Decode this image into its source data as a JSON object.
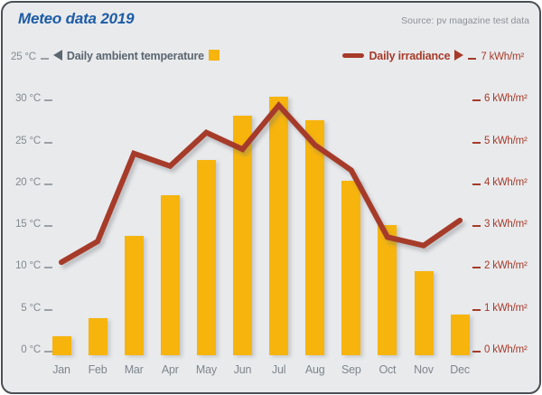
{
  "chart_data": {
    "type": "bar",
    "title": "Meteo data 2019",
    "source": "Source: pv magazine test data",
    "categories": [
      "Jan",
      "Feb",
      "Mar",
      "Apr",
      "May",
      "Jun",
      "Jul",
      "Aug",
      "Sep",
      "Oct",
      "Nov",
      "Dec"
    ],
    "series": [
      {
        "name": "Daily ambient temperature",
        "kind": "bar",
        "axis": "left",
        "unit": "°C",
        "values": [
          2.2,
          4.3,
          14.2,
          19.0,
          23.2,
          28.5,
          30.8,
          28.0,
          20.7,
          15.4,
          9.9,
          4.8
        ]
      },
      {
        "name": "Daily irradiance",
        "kind": "line",
        "axis": "right",
        "unit": "kWh/m²",
        "values": [
          2.2,
          2.7,
          4.8,
          4.5,
          5.3,
          4.9,
          5.95,
          5.0,
          4.4,
          2.8,
          2.6,
          3.2
        ]
      }
    ],
    "legend": {
      "left": {
        "tick_label": "25 °C",
        "label": "Daily ambient temperature"
      },
      "right": {
        "label": "Daily irradiance",
        "tick_label": "7 kWh/m²"
      }
    },
    "left_axis": {
      "unit": "°C",
      "range": [
        0,
        35
      ],
      "tick_labels": [
        "30 °C",
        "25 °C",
        "20 °C",
        "15 °C",
        "10 °C",
        "5 °C",
        "0 °C"
      ],
      "tick_values": [
        30,
        25,
        20,
        15,
        10,
        5,
        0
      ]
    },
    "right_axis": {
      "unit": "kWh/m²",
      "range": [
        0,
        7
      ],
      "tick_labels": [
        "6 kWh/m²",
        "5 kWh/m²",
        "4 kWh/m²",
        "3 kWh/m²",
        "2 kWh/m²",
        "1 kWh/m²",
        "0 kWh/m²"
      ],
      "tick_values": [
        6,
        5,
        4,
        3,
        2,
        1,
        0
      ]
    },
    "grid": false,
    "legend_position": "top",
    "colors": {
      "bar": "#F6B40D",
      "line": "#A63B2A",
      "title": "#1C5CA5",
      "axis_text_left": "#82898F",
      "axis_text_right": "#A63B2A",
      "legend_text_left": "#5B6670",
      "background": "#E9EAEC",
      "border": "#4A4F55"
    }
  }
}
